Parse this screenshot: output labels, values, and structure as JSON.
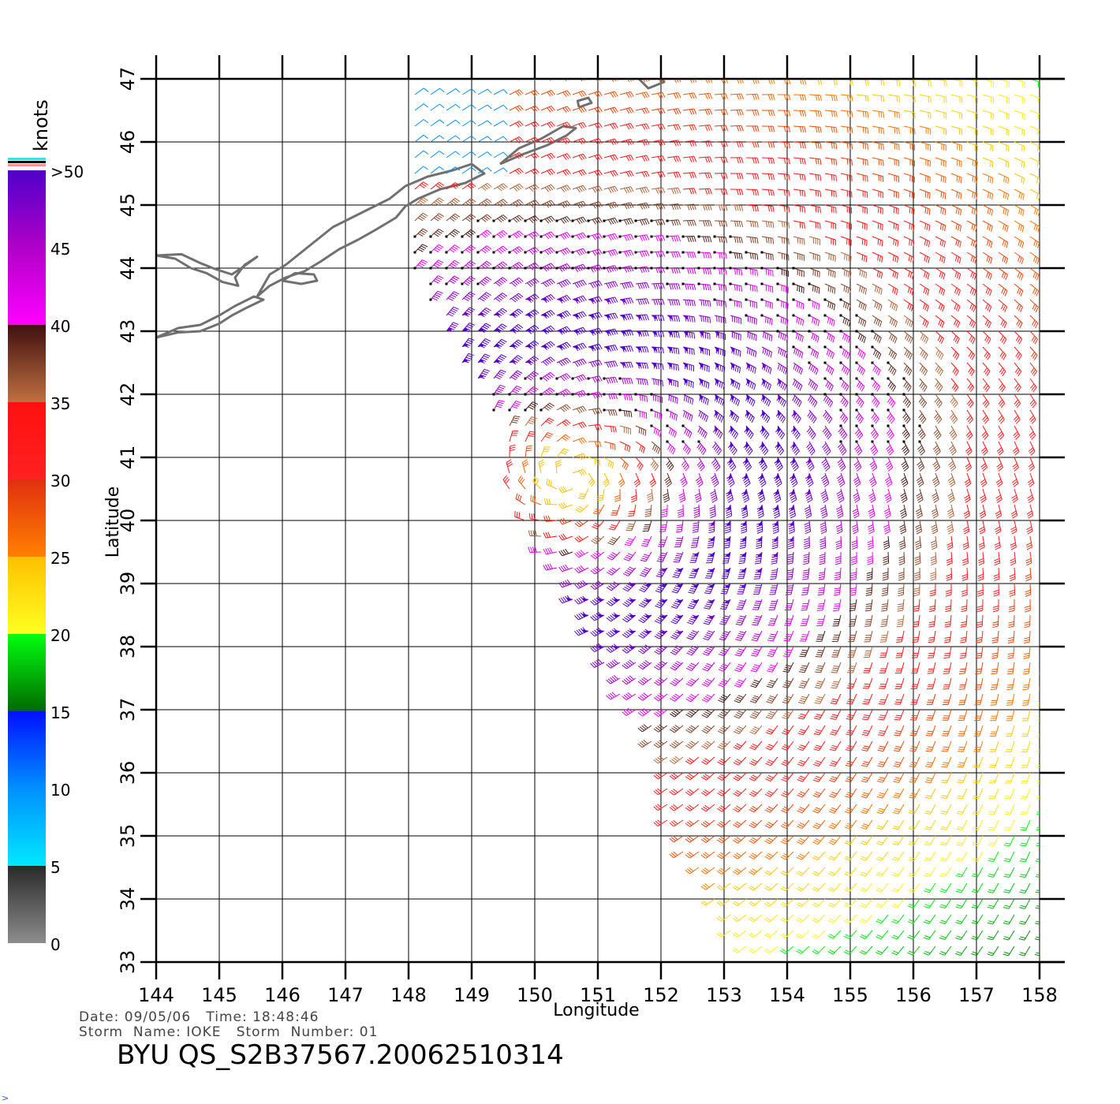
{
  "title": "",
  "colorbar": {
    "label": "knots",
    "ticks": [
      "0",
      "5",
      "10",
      "15",
      "20",
      "25",
      "30",
      "35",
      "40",
      "45",
      ">50"
    ],
    "stops": [
      {
        "speed": 0,
        "color": "#8c8c8c"
      },
      {
        "speed": 5,
        "color": "#2a2a2a"
      },
      {
        "speed": 5.01,
        "color": "#00e8ff"
      },
      {
        "speed": 10,
        "color": "#0090ff"
      },
      {
        "speed": 15,
        "color": "#0010ff"
      },
      {
        "speed": 15.01,
        "color": "#006a00"
      },
      {
        "speed": 20,
        "color": "#00ff10"
      },
      {
        "speed": 20.01,
        "color": "#ffff20"
      },
      {
        "speed": 25,
        "color": "#ffc000"
      },
      {
        "speed": 25.01,
        "color": "#ff8000"
      },
      {
        "speed": 30,
        "color": "#e03010"
      },
      {
        "speed": 30.01,
        "color": "#ff2020"
      },
      {
        "speed": 35,
        "color": "#ff1010"
      },
      {
        "speed": 35.01,
        "color": "#c07040"
      },
      {
        "speed": 40,
        "color": "#401010"
      },
      {
        "speed": 40.01,
        "color": "#ff00ff"
      },
      {
        "speed": 45,
        "color": "#b000c8"
      },
      {
        "speed": 50,
        "color": "#5000c8"
      }
    ],
    "overflow_colors": [
      "#40e0e0",
      "#000000",
      "#ff9090"
    ]
  },
  "map": {
    "xlabel": "Longitude",
    "ylabel": "Latitude",
    "lon_range": [
      144,
      158
    ],
    "lat_range": [
      33,
      47
    ],
    "lon_ticks": [
      "144",
      "145",
      "146",
      "147",
      "148",
      "149",
      "150",
      "151",
      "152",
      "153",
      "154",
      "155",
      "156",
      "157",
      "158"
    ],
    "lat_ticks": [
      "33",
      "34",
      "35",
      "36",
      "37",
      "38",
      "39",
      "40",
      "41",
      "42",
      "43",
      "44",
      "45",
      "46",
      "47"
    ],
    "grid": true,
    "coastline_color": "#707070",
    "storm_center": {
      "lon": 150.6,
      "lat": 40.7
    }
  },
  "chart_data": {
    "type": "wind-barbs",
    "units": "knots",
    "storm_center": {
      "lon": 150.6,
      "lat": 40.7
    },
    "swath_edge_start": [
      [
        148.0,
        44.2
      ],
      [
        148.8,
        42.5
      ],
      [
        149.4,
        41.5
      ],
      [
        149.6,
        40.5
      ],
      [
        150.1,
        39.5
      ],
      [
        150.7,
        38.5
      ],
      [
        151.2,
        37.5
      ],
      [
        151.8,
        36.5
      ],
      [
        152.0,
        35.5
      ],
      [
        152.4,
        34.5
      ],
      [
        153.0,
        33.8
      ],
      [
        153.2,
        33.0
      ]
    ],
    "ring_speeds_knots": [
      {
        "radius_deg": 0.5,
        "speed": 25
      },
      {
        "radius_deg": 1.3,
        "speed": 42
      },
      {
        "radius_deg": 2.2,
        "speed": 52
      },
      {
        "radius_deg": 3.2,
        "speed": 46
      },
      {
        "radius_deg": 4.2,
        "speed": 38
      },
      {
        "radius_deg": 5.2,
        "speed": 32
      },
      {
        "radius_deg": 6.5,
        "speed": 26
      },
      {
        "radius_deg": 8.0,
        "speed": 20
      },
      {
        "radius_deg": 9.5,
        "speed": 16
      }
    ]
  },
  "footer": {
    "date_label": "Date:",
    "date": "09/05/06",
    "time_label": "Time:",
    "time": "18:48:46",
    "storm_name_label": "Storm  Name:",
    "storm_name": "IOKE",
    "storm_number_label": "Storm  Number:",
    "storm_number": "01"
  },
  "product_id": "BYU  QS_S2B37567.20062510314"
}
